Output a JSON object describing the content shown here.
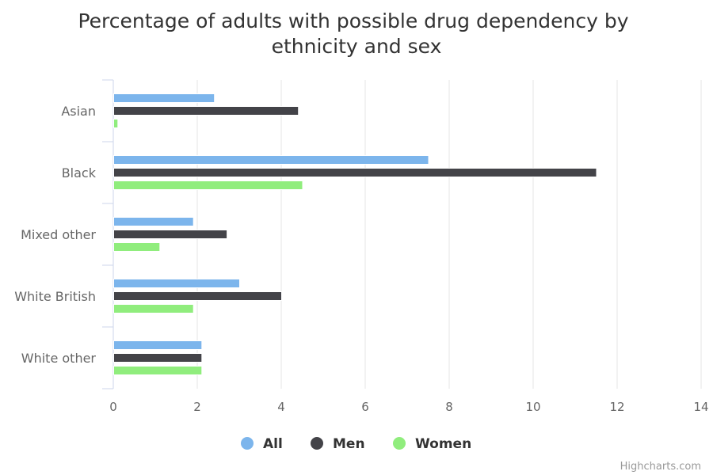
{
  "chart_data": {
    "type": "bar",
    "orientation": "horizontal",
    "title": "Percentage of adults with possible drug dependency by ethnicity and sex",
    "title_lines": [
      "Percentage of adults with possible drug dependency by",
      "ethnicity and sex"
    ],
    "categories": [
      "Asian",
      "Black",
      "Mixed other",
      "White British",
      "White other"
    ],
    "series": [
      {
        "name": "All",
        "color": "#7cb5ec",
        "values": [
          2.4,
          7.5,
          1.9,
          3.0,
          2.1
        ]
      },
      {
        "name": "Men",
        "color": "#434348",
        "values": [
          4.4,
          11.5,
          2.7,
          4.0,
          2.1
        ]
      },
      {
        "name": "Women",
        "color": "#90ed7d",
        "values": [
          0.1,
          4.5,
          1.1,
          1.9,
          2.1
        ]
      }
    ],
    "xlim": [
      0,
      14
    ],
    "ticks": [
      0,
      2,
      4,
      6,
      8,
      10,
      12,
      14
    ],
    "grid": true,
    "legend_position": "bottom-center",
    "xlabel": "",
    "ylabel": ""
  },
  "credits": "Highcharts.com"
}
